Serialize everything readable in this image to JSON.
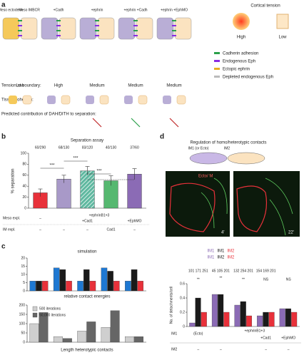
{
  "panel_a": {
    "letter": "a",
    "cells": [
      "Meso ectoderm",
      "Meso IMBCR",
      "+Cadh",
      "+ephrin",
      "+ephrin +Cadh",
      "+ephrin +EphMO"
    ],
    "cortical": {
      "title": "Cortical tension",
      "high": "High",
      "low": "Low"
    },
    "legend": [
      "Cadherin adhesion",
      "Endogenous Eph",
      "Ectopic ephrin",
      "Depleted endogenous Eph"
    ],
    "tension_label": "Tension at boundary:",
    "tension": [
      "Low",
      "High",
      "Medium",
      "Medium",
      "Medium"
    ],
    "cohesion_label": "Tissue cohesion:",
    "contribution_label": "Predicted contribution of DAH/DITH to separation:"
  },
  "panel_b": {
    "letter": "b",
    "significance": [
      "***",
      "***",
      "***",
      "NS"
    ]
  },
  "panel_c": {
    "letter": "c"
  },
  "panel_d": {
    "letter": "d",
    "title": "Regulation of homo/heterotypic contacts",
    "cell1": "IM1 (or Ecto)",
    "cell2": "IM2",
    "stain": "Ecto/ M",
    "times": [
      "4'",
      "22'"
    ],
    "significance": [
      "**",
      "**",
      "**",
      "NS",
      "NS"
    ]
  },
  "chart_data": [
    {
      "type": "bar",
      "title": "Separation assay",
      "annotations": [
        "60/290",
        "68/130",
        "83/120",
        "40/130",
        "37/60"
      ],
      "ylabel": "% separation",
      "values": [
        28,
        53,
        68,
        50,
        62
      ],
      "errors": [
        7,
        7,
        8,
        9,
        10
      ],
      "colors": [
        "#e8313a",
        "#a899c8",
        "#5fb8a0",
        "#56b870",
        "#8b6bb5"
      ],
      "hatch": [
        false,
        false,
        true,
        false,
        false
      ],
      "ylim": [
        0,
        100
      ],
      "yticks": [
        0,
        20,
        40,
        60,
        80,
        100
      ],
      "rows": [
        {
          "label": "Meso expl.",
          "cells": [
            "–",
            "+ephrinB1+3",
            "+Cad1",
            "+EphMO"
          ]
        },
        {
          "label": "IM expl.",
          "cells": [
            "–",
            "–",
            "–",
            "Cad1",
            "–"
          ]
        }
      ]
    },
    {
      "type": "grouped_bar",
      "title": "simulation",
      "xlabel": "relative contact energies",
      "series": [
        {
          "color": "#1e78d2",
          "values": [
            6,
            14,
            6,
            14,
            6
          ]
        },
        {
          "color": "#1a1a1a",
          "values": [
            6,
            13,
            13,
            12,
            13
          ]
        },
        {
          "color": "#e8313a",
          "values": [
            6,
            6,
            6,
            6,
            6
          ]
        }
      ],
      "ylim": [
        0,
        20
      ],
      "yticks": [
        0,
        5,
        10,
        15,
        20
      ]
    },
    {
      "type": "grouped_bar",
      "xlabel": "Length heterotypic contacts",
      "series": [
        {
          "name": "500 iterations",
          "color": "#cfcfcf",
          "values": [
            100,
            30,
            60,
            80,
            30
          ]
        },
        {
          "name": "50,000 iterations",
          "color": "#666666",
          "values": [
            160,
            20,
            110,
            170,
            30
          ]
        }
      ],
      "ylim": [
        0,
        200
      ],
      "yticks": [
        0,
        50,
        100,
        150,
        200
      ]
    },
    {
      "type": "grouped_bar",
      "ylabel": "No. of detachments/cell",
      "annotations": [
        "101 171 251",
        "45 105 201",
        "132 254 201",
        "154 169 201"
      ],
      "header_labels": [
        [
          "IM1",
          "IM1"
        ],
        [
          "IM1",
          "IM2"
        ],
        [
          "IM2",
          "IM2"
        ]
      ],
      "series": [
        {
          "color": "#8b6bb5",
          "values": [
            0.05,
            0.45,
            0.3,
            0.15,
            0.25
          ]
        },
        {
          "color": "#1a1a1a",
          "values": [
            0.4,
            0.45,
            0.35,
            0.2,
            0.25
          ]
        },
        {
          "color": "#e8313a",
          "values": [
            0.2,
            0.2,
            0.15,
            0.2,
            0.2
          ]
        }
      ],
      "ylim": [
        0,
        0.6
      ],
      "yticks": [
        0,
        0.2,
        0.4,
        0.6
      ],
      "rows": [
        {
          "label": "IM1",
          "cells": [
            "(Ecto)",
            "+ephrinB1+3",
            "+Cad1",
            "+EphMO"
          ]
        },
        {
          "label": "IM2",
          "cells": [
            "–",
            "–",
            "–",
            "–"
          ]
        }
      ]
    }
  ]
}
